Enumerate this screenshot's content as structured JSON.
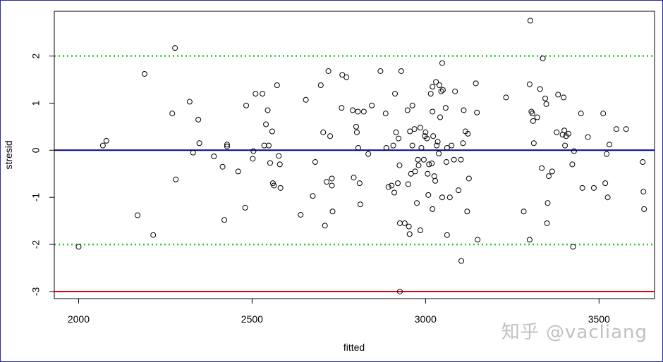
{
  "watermark": "知乎 @vacliang",
  "chart_data": {
    "type": "scatter",
    "title": "",
    "xlabel": "fitted",
    "ylabel": "stresid",
    "xlim": [
      1930,
      3660
    ],
    "ylim": [
      -3.15,
      2.95
    ],
    "x_ticks": [
      2000,
      2500,
      3000,
      3500
    ],
    "x_tick_labels": [
      "2000",
      "2500",
      "3000",
      "3500"
    ],
    "y_ticks": [
      -3,
      -2,
      -1,
      0,
      1,
      2
    ],
    "y_tick_labels": [
      "-3",
      "-2",
      "-1",
      "0",
      "1",
      "2"
    ],
    "grid": false,
    "reference_lines": [
      {
        "y": 0,
        "color": "#00008b",
        "style": "solid"
      },
      {
        "y": 2,
        "color": "#22cc22",
        "style": "dotted"
      },
      {
        "y": -2,
        "color": "#22cc22",
        "style": "dotted"
      },
      {
        "y": -3,
        "color": "#ee0000",
        "style": "solid"
      }
    ],
    "series": [
      {
        "marker": "open-circle",
        "points": [
          [
            2000,
            -2.05
          ],
          [
            2070,
            0.1
          ],
          [
            2080,
            0.2
          ],
          [
            2170,
            -1.38
          ],
          [
            2190,
            1.62
          ],
          [
            2215,
            -1.8
          ],
          [
            2270,
            0.78
          ],
          [
            2278,
            2.17
          ],
          [
            2280,
            -0.62
          ],
          [
            2320,
            1.03
          ],
          [
            2330,
            -0.05
          ],
          [
            2345,
            0.65
          ],
          [
            2348,
            0.15
          ],
          [
            2390,
            -0.13
          ],
          [
            2415,
            -0.35
          ],
          [
            2420,
            -1.48
          ],
          [
            2428,
            0.12
          ],
          [
            2428,
            0.08
          ],
          [
            2460,
            -0.45
          ],
          [
            2480,
            -1.22
          ],
          [
            2483,
            0.95
          ],
          [
            2502,
            -0.18
          ],
          [
            2504,
            -0.02
          ],
          [
            2510,
            1.2
          ],
          [
            2530,
            1.2
          ],
          [
            2535,
            0.1
          ],
          [
            2540,
            0.55
          ],
          [
            2545,
            0.85
          ],
          [
            2548,
            0.1
          ],
          [
            2552,
            -0.27
          ],
          [
            2558,
            0.4
          ],
          [
            2560,
            -0.7
          ],
          [
            2563,
            -0.75
          ],
          [
            2572,
            1.38
          ],
          [
            2577,
            -0.12
          ],
          [
            2580,
            -0.3
          ],
          [
            2582,
            -0.8
          ],
          [
            2640,
            -1.37
          ],
          [
            2655,
            1.07
          ],
          [
            2675,
            -0.97
          ],
          [
            2682,
            -0.25
          ],
          [
            2698,
            1.38
          ],
          [
            2705,
            0.38
          ],
          [
            2710,
            -1.6
          ],
          [
            2715,
            -0.67
          ],
          [
            2720,
            1.68
          ],
          [
            2725,
            0.3
          ],
          [
            2730,
            -0.75
          ],
          [
            2730,
            -0.6
          ],
          [
            2732,
            -1.3
          ],
          [
            2758,
            0.9
          ],
          [
            2760,
            1.6
          ],
          [
            2772,
            1.55
          ],
          [
            2790,
            0.85
          ],
          [
            2793,
            -0.58
          ],
          [
            2800,
            0.5
          ],
          [
            2802,
            0.38
          ],
          [
            2805,
            0.82
          ],
          [
            2806,
            0.05
          ],
          [
            2810,
            -0.7
          ],
          [
            2812,
            -1.15
          ],
          [
            2822,
            0.82
          ],
          [
            2835,
            -0.08
          ],
          [
            2845,
            0.95
          ],
          [
            2870,
            1.68
          ],
          [
            2885,
            0.78
          ],
          [
            2887,
            0.05
          ],
          [
            2893,
            -0.78
          ],
          [
            2902,
            -0.75
          ],
          [
            2907,
            0.1
          ],
          [
            2910,
            -0.9
          ],
          [
            2912,
            1.2
          ],
          [
            2915,
            0.38
          ],
          [
            2920,
            -0.7
          ],
          [
            2922,
            0.25
          ],
          [
            2925,
            -0.32
          ],
          [
            2926,
            -1.55
          ],
          [
            2926,
            -3.0
          ],
          [
            2930,
            1.68
          ],
          [
            2940,
            -1.55
          ],
          [
            2948,
            0.85
          ],
          [
            2950,
            -0.72
          ],
          [
            2952,
            -1.62
          ],
          [
            2954,
            -1.78
          ],
          [
            2955,
            0.4
          ],
          [
            2958,
            -0.5
          ],
          [
            2962,
            0.95
          ],
          [
            2962,
            0.1
          ],
          [
            2968,
            0.45
          ],
          [
            2970,
            -0.45
          ],
          [
            2975,
            -1.12
          ],
          [
            2978,
            -0.2
          ],
          [
            2980,
            -0.32
          ],
          [
            2985,
            0.48
          ],
          [
            2985,
            -1.7
          ],
          [
            2988,
            0.05
          ],
          [
            2995,
            -0.2
          ],
          [
            2998,
            0.3
          ],
          [
            3000,
            0.38
          ],
          [
            3004,
            0.25
          ],
          [
            3006,
            -0.5
          ],
          [
            3008,
            -0.95
          ],
          [
            3010,
            -0.3
          ],
          [
            3015,
            1.2
          ],
          [
            3018,
            -0.28
          ],
          [
            3020,
            1.35
          ],
          [
            3020,
            0.82
          ],
          [
            3020,
            -1.25
          ],
          [
            3022,
            0.3
          ],
          [
            3025,
            -0.55
          ],
          [
            3028,
            -0.65
          ],
          [
            3030,
            1.45
          ],
          [
            3032,
            0.1
          ],
          [
            3035,
            0.18
          ],
          [
            3038,
            -0.07
          ],
          [
            3040,
            1.38
          ],
          [
            3042,
            0.7
          ],
          [
            3045,
            1.25
          ],
          [
            3048,
            -1.0
          ],
          [
            3048,
            1.85
          ],
          [
            3050,
            1.28
          ],
          [
            3058,
            0.9
          ],
          [
            3060,
            -0.25
          ],
          [
            3062,
            -1.8
          ],
          [
            3062,
            0.05
          ],
          [
            3070,
            -1.0
          ],
          [
            3075,
            0.1
          ],
          [
            3082,
            -0.2
          ],
          [
            3085,
            1.25
          ],
          [
            3095,
            -0.85
          ],
          [
            3102,
            -0.2
          ],
          [
            3103,
            -2.35
          ],
          [
            3108,
            0.15
          ],
          [
            3110,
            0.85
          ],
          [
            3115,
            0.4
          ],
          [
            3120,
            -1.3
          ],
          [
            3122,
            0.35
          ],
          [
            3125,
            -0.6
          ],
          [
            3145,
            1.42
          ],
          [
            3148,
            0.8
          ],
          [
            3150,
            -1.9
          ],
          [
            3232,
            1.12
          ],
          [
            3283,
            -1.3
          ],
          [
            3300,
            1.4
          ],
          [
            3300,
            -1.9
          ],
          [
            3302,
            2.75
          ],
          [
            3305,
            0.82
          ],
          [
            3308,
            0.78
          ],
          [
            3310,
            0.62
          ],
          [
            3312,
            0.15
          ],
          [
            3322,
            0.7
          ],
          [
            3330,
            1.3
          ],
          [
            3335,
            -0.38
          ],
          [
            3338,
            1.95
          ],
          [
            3345,
            1.1
          ],
          [
            3348,
            0.98
          ],
          [
            3350,
            -1.55
          ],
          [
            3352,
            -1.12
          ],
          [
            3355,
            -0.55
          ],
          [
            3365,
            -0.45
          ],
          [
            3378,
            0.38
          ],
          [
            3382,
            1.18
          ],
          [
            3395,
            0.33
          ],
          [
            3398,
            1.12
          ],
          [
            3400,
            0.42
          ],
          [
            3402,
            0.1
          ],
          [
            3405,
            0.3
          ],
          [
            3412,
            0.35
          ],
          [
            3423,
            -0.3
          ],
          [
            3425,
            -2.05
          ],
          [
            3428,
            -0.02
          ],
          [
            3448,
            0.78
          ],
          [
            3452,
            -0.8
          ],
          [
            3468,
            0.28
          ],
          [
            3485,
            -0.8
          ],
          [
            3512,
            0.78
          ],
          [
            3518,
            -0.7
          ],
          [
            3522,
            -0.08
          ],
          [
            3525,
            -1.0
          ],
          [
            3530,
            0.12
          ],
          [
            3550,
            0.45
          ],
          [
            3578,
            0.45
          ],
          [
            3626,
            -0.25
          ],
          [
            3628,
            -0.88
          ],
          [
            3630,
            -1.25
          ]
        ]
      }
    ]
  }
}
